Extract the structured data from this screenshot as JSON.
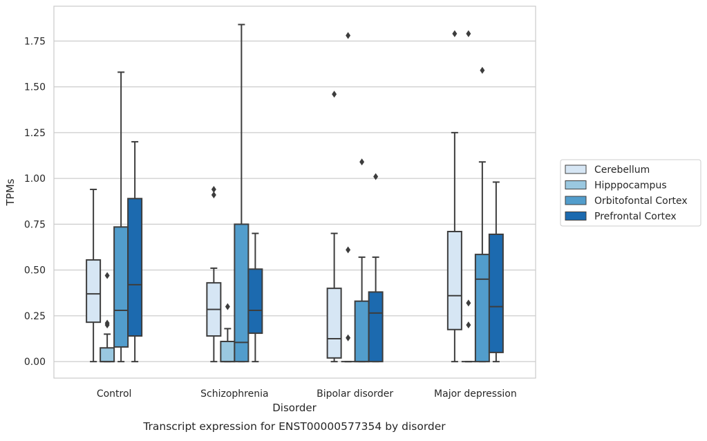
{
  "chart_data": {
    "type": "box",
    "title": "",
    "caption": "Transcript expression for ENST00000577354 by disorder",
    "xlabel": "Disorder",
    "ylabel": "TPMs",
    "ylim": [
      -0.09,
      1.94
    ],
    "yticks": [
      0.0,
      0.25,
      0.5,
      0.75,
      1.0,
      1.25,
      1.5,
      1.75
    ],
    "ytick_labels": [
      "0.00",
      "0.25",
      "0.50",
      "0.75",
      "1.00",
      "1.25",
      "1.50",
      "1.75"
    ],
    "grid": "horizontal",
    "legend_position": "outside-right",
    "categories": [
      "Control",
      "Schizophrenia",
      "Bipolar disorder",
      "Major depression"
    ],
    "series": [
      {
        "name": "Cerebellum",
        "color": "#d6e6f4",
        "boxes": [
          {
            "whisker_low": 0.0,
            "q1": 0.215,
            "median": 0.37,
            "q3": 0.555,
            "whisker_high": 0.94,
            "outliers": []
          },
          {
            "whisker_low": 0.0,
            "q1": 0.14,
            "median": 0.285,
            "q3": 0.43,
            "whisker_high": 0.51,
            "outliers": [
              0.91,
              0.94
            ]
          },
          {
            "whisker_low": 0.0,
            "q1": 0.02,
            "median": 0.125,
            "q3": 0.4,
            "whisker_high": 0.7,
            "outliers": [
              1.46
            ]
          },
          {
            "whisker_low": 0.0,
            "q1": 0.175,
            "median": 0.36,
            "q3": 0.71,
            "whisker_high": 1.25,
            "outliers": [
              1.79
            ]
          }
        ]
      },
      {
        "name": "Hipppocampus",
        "color": "#9ac8e0",
        "boxes": [
          {
            "whisker_low": 0.0,
            "q1": 0.0,
            "median": 0.0,
            "q3": 0.075,
            "whisker_high": 0.15,
            "outliers": [
              0.2,
              0.21,
              0.47
            ]
          },
          {
            "whisker_low": 0.0,
            "q1": 0.0,
            "median": 0.0,
            "q3": 0.11,
            "whisker_high": 0.18,
            "outliers": [
              0.3
            ]
          },
          {
            "whisker_low": 0.0,
            "q1": 0.0,
            "median": 0.0,
            "q3": 0.0,
            "whisker_high": 0.0,
            "outliers": [
              0.13,
              0.61,
              1.78
            ]
          },
          {
            "whisker_low": 0.0,
            "q1": 0.0,
            "median": 0.0,
            "q3": 0.0,
            "whisker_high": 0.0,
            "outliers": [
              0.2,
              0.32,
              1.79
            ]
          }
        ]
      },
      {
        "name": "Orbitofontal Cortex",
        "color": "#529dcc",
        "boxes": [
          {
            "whisker_low": 0.0,
            "q1": 0.08,
            "median": 0.28,
            "q3": 0.735,
            "whisker_high": 1.58,
            "outliers": []
          },
          {
            "whisker_low": 0.0,
            "q1": 0.0,
            "median": 0.105,
            "q3": 0.75,
            "whisker_high": 1.84,
            "outliers": []
          },
          {
            "whisker_low": 0.0,
            "q1": 0.0,
            "median": 0.0,
            "q3": 0.33,
            "whisker_high": 0.57,
            "outliers": [
              1.09
            ]
          },
          {
            "whisker_low": 0.0,
            "q1": 0.0,
            "median": 0.45,
            "q3": 0.585,
            "whisker_high": 1.09,
            "outliers": [
              1.59
            ]
          }
        ]
      },
      {
        "name": "Prefrontal Cortex",
        "color": "#1c6aaf",
        "boxes": [
          {
            "whisker_low": 0.0,
            "q1": 0.14,
            "median": 0.42,
            "q3": 0.89,
            "whisker_high": 1.2,
            "outliers": []
          },
          {
            "whisker_low": 0.0,
            "q1": 0.155,
            "median": 0.28,
            "q3": 0.505,
            "whisker_high": 0.7,
            "outliers": []
          },
          {
            "whisker_low": 0.0,
            "q1": 0.0,
            "median": 0.265,
            "q3": 0.38,
            "whisker_high": 0.57,
            "outliers": [
              1.01
            ]
          },
          {
            "whisker_low": 0.0,
            "q1": 0.05,
            "median": 0.3,
            "q3": 0.695,
            "whisker_high": 0.98,
            "outliers": []
          }
        ]
      }
    ]
  }
}
